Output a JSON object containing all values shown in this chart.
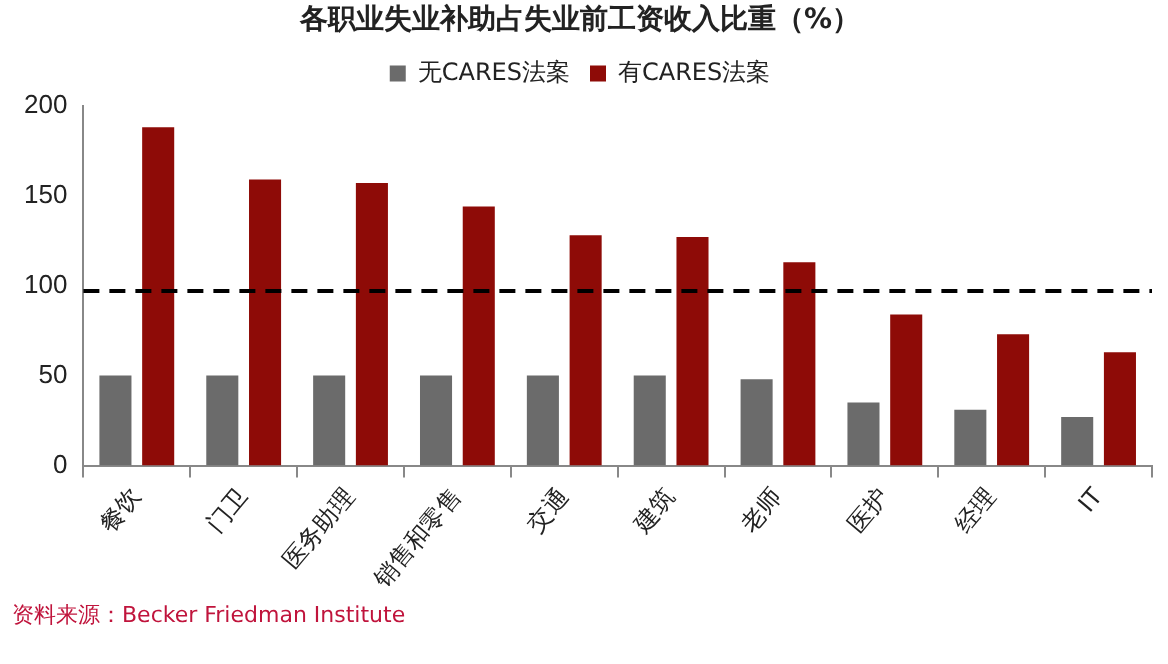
{
  "chart_data": {
    "type": "bar",
    "title": "各职业失业补助占失业前工资收入比重（%）",
    "categories": [
      "餐饮",
      "门卫",
      "医务助理",
      "销售和零售",
      "交通",
      "建筑",
      "老师",
      "医护",
      "经理",
      "IT"
    ],
    "series": [
      {
        "name": "无CARES法案",
        "color": "#6b6b6b",
        "values": [
          50,
          50,
          50,
          50,
          50,
          50,
          48,
          35,
          31,
          27
        ]
      },
      {
        "name": "有CARES法案",
        "color": "#8e0b07",
        "values": [
          188,
          159,
          157,
          144,
          128,
          127,
          113,
          84,
          73,
          63
        ]
      }
    ],
    "ylim": [
      0,
      200
    ],
    "yticks": [
      0,
      50,
      100,
      150,
      200
    ],
    "grid": false,
    "legend": "top",
    "ref_lines": [
      {
        "axis": "y",
        "value": 97,
        "color": "#000000",
        "line_style": "dashed"
      }
    ],
    "annotations": [
      "资料来源：Becker Friedman Institute"
    ]
  }
}
